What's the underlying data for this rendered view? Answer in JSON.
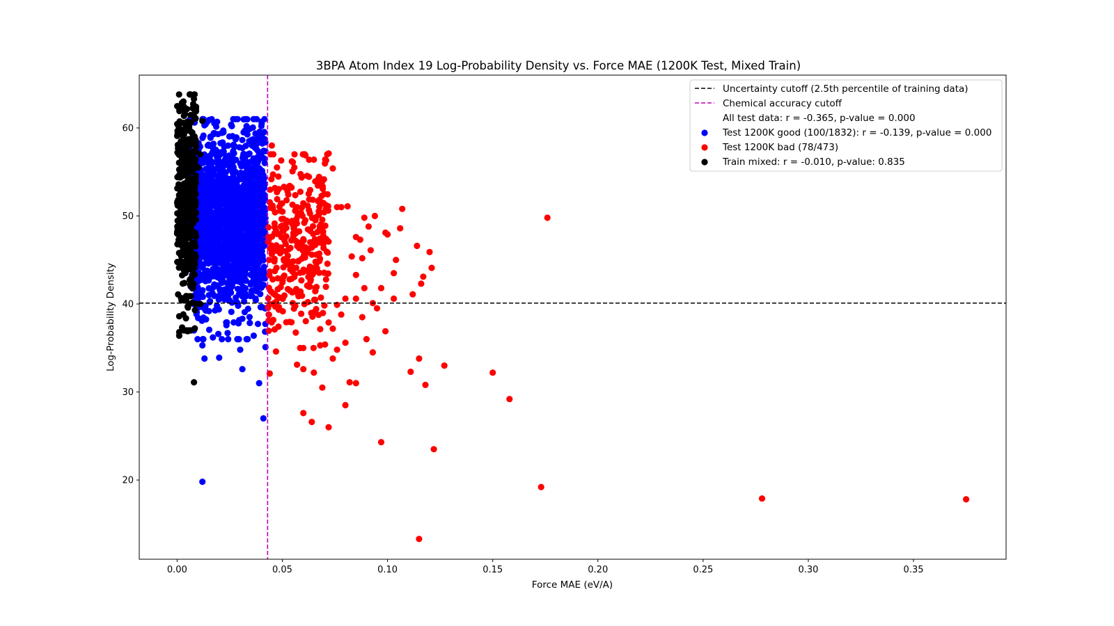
{
  "chart_data": {
    "type": "scatter",
    "title": "3BPA Atom Index 19 Log-Probability Density vs. Force MAE (1200K Test, Mixed Train)",
    "xlabel": "Force MAE (eV/A)",
    "ylabel": "Log-Probability Density",
    "xlim": [
      -0.018,
      0.394
    ],
    "ylim": [
      11.0,
      66.0
    ],
    "xticks": [
      0.0,
      0.05,
      0.1,
      0.15,
      0.2,
      0.25,
      0.3,
      0.35
    ],
    "xtick_labels": [
      "0.00",
      "0.05",
      "0.10",
      "0.15",
      "0.20",
      "0.25",
      "0.30",
      "0.35"
    ],
    "yticks": [
      20,
      30,
      40,
      50,
      60
    ],
    "ytick_labels": [
      "20",
      "30",
      "40",
      "50",
      "60"
    ],
    "grid": false,
    "legend_position": "top-right",
    "reference_lines": [
      {
        "orientation": "horizontal",
        "value": 40.1,
        "color": "#000000",
        "style": "dashed",
        "label": "Uncertainty cutoff (2.5th percentile of training data)"
      },
      {
        "orientation": "vertical",
        "value": 0.043,
        "color": "#bf00bf",
        "style": "dashed",
        "label": "Chemical accuracy cutoff"
      }
    ],
    "legend_note": "All test data: r = -0.365, p-value = 0.000",
    "series": [
      {
        "name": "Test 1200K good (100/1832): r = -0.139, p-value = 0.000",
        "color": "#0000ff",
        "cluster": {
          "count": 1700,
          "x_range": [
            0.006,
            0.042
          ],
          "y_mean": 49.5,
          "y_sd": 5.0,
          "y_range": [
            36,
            61
          ],
          "seed": 11
        },
        "points": [
          [
            0.012,
            19.8
          ],
          [
            0.041,
            27.0
          ],
          [
            0.039,
            31.0
          ],
          [
            0.031,
            32.6
          ],
          [
            0.013,
            33.8
          ],
          [
            0.02,
            33.9
          ],
          [
            0.03,
            34.8
          ],
          [
            0.012,
            35.3
          ],
          [
            0.042,
            35.1
          ],
          [
            0.019,
            60.7
          ],
          [
            0.026,
            60.2
          ],
          [
            0.033,
            60.2
          ],
          [
            0.013,
            60.3
          ],
          [
            0.022,
            59.5
          ],
          [
            0.036,
            58.7
          ],
          [
            0.008,
            37.0
          ],
          [
            0.01,
            38.4
          ],
          [
            0.017,
            36.2
          ],
          [
            0.024,
            36.7
          ]
        ]
      },
      {
        "name": "Test 1200K bad (78/473)",
        "color": "#ff0000",
        "cluster": {
          "count": 330,
          "x_range": [
            0.043,
            0.072
          ],
          "y_mean": 46.0,
          "y_sd": 5.0,
          "y_range": [
            35,
            57
          ],
          "seed": 23
        },
        "points": [
          [
            0.115,
            13.3
          ],
          [
            0.375,
            17.8
          ],
          [
            0.278,
            17.9
          ],
          [
            0.173,
            19.2
          ],
          [
            0.122,
            23.5
          ],
          [
            0.097,
            24.3
          ],
          [
            0.072,
            26.0
          ],
          [
            0.064,
            26.6
          ],
          [
            0.06,
            27.6
          ],
          [
            0.08,
            28.5
          ],
          [
            0.158,
            29.2
          ],
          [
            0.069,
            30.5
          ],
          [
            0.082,
            31.1
          ],
          [
            0.085,
            31.0
          ],
          [
            0.118,
            30.8
          ],
          [
            0.044,
            32.1
          ],
          [
            0.15,
            32.2
          ],
          [
            0.111,
            32.3
          ],
          [
            0.065,
            32.2
          ],
          [
            0.06,
            32.6
          ],
          [
            0.057,
            33.1
          ],
          [
            0.127,
            33.0
          ],
          [
            0.074,
            33.8
          ],
          [
            0.115,
            33.8
          ],
          [
            0.093,
            34.5
          ],
          [
            0.047,
            34.6
          ],
          [
            0.076,
            34.8
          ],
          [
            0.068,
            35.3
          ],
          [
            0.08,
            35.6
          ],
          [
            0.09,
            36.0
          ],
          [
            0.099,
            36.9
          ],
          [
            0.074,
            37.2
          ],
          [
            0.072,
            37.9
          ],
          [
            0.078,
            38.8
          ],
          [
            0.085,
            40.6
          ],
          [
            0.093,
            40.1
          ],
          [
            0.095,
            39.5
          ],
          [
            0.089,
            41.8
          ],
          [
            0.097,
            41.8
          ],
          [
            0.103,
            40.6
          ],
          [
            0.112,
            41.1
          ],
          [
            0.116,
            42.3
          ],
          [
            0.117,
            43.1
          ],
          [
            0.121,
            44.1
          ],
          [
            0.12,
            45.9
          ],
          [
            0.114,
            46.6
          ],
          [
            0.104,
            45.0
          ],
          [
            0.103,
            43.5
          ],
          [
            0.1,
            47.9
          ],
          [
            0.099,
            48.1
          ],
          [
            0.106,
            48.6
          ],
          [
            0.107,
            50.8
          ],
          [
            0.176,
            49.8
          ],
          [
            0.094,
            50.0
          ],
          [
            0.089,
            49.8
          ],
          [
            0.091,
            48.8
          ],
          [
            0.087,
            47.3
          ],
          [
            0.085,
            47.6
          ],
          [
            0.092,
            46.1
          ],
          [
            0.088,
            45.2
          ],
          [
            0.083,
            45.4
          ],
          [
            0.081,
            51.1
          ],
          [
            0.076,
            51.0
          ],
          [
            0.078,
            51.0
          ],
          [
            0.07,
            52.5
          ],
          [
            0.074,
            55.4
          ],
          [
            0.065,
            56.4
          ],
          [
            0.072,
            57.1
          ],
          [
            0.061,
            56.9
          ],
          [
            0.055,
            56.1
          ],
          [
            0.045,
            58.0
          ],
          [
            0.08,
            40.6
          ],
          [
            0.085,
            43.3
          ],
          [
            0.076,
            39.9
          ],
          [
            0.088,
            38.5
          ]
        ]
      },
      {
        "name": "Train mixed: r = -0.010, p-value: 0.835",
        "color": "#000000",
        "cluster": {
          "count": 420,
          "x_range": [
            0.0,
            0.009
          ],
          "y_mean": 52.0,
          "y_sd": 6.0,
          "y_range": [
            37,
            63.8
          ],
          "seed": 37
        },
        "points": [
          [
            0.008,
            31.1
          ],
          [
            0.001,
            36.8
          ],
          [
            0.001,
            36.4
          ],
          [
            0.005,
            36.9
          ],
          [
            0.001,
            38.6
          ],
          [
            0.005,
            39.7
          ],
          [
            0.006,
            40.0
          ],
          [
            0.009,
            40.0
          ],
          [
            0.011,
            40.0
          ],
          [
            0.006,
            63.8
          ],
          [
            0.008,
            63.3
          ],
          [
            0.003,
            63.0
          ],
          [
            0.009,
            62.4
          ],
          [
            0.009,
            61.9
          ],
          [
            0.012,
            60.8
          ],
          [
            0.01,
            55.5
          ],
          [
            0.0,
            48.0
          ],
          [
            0.009,
            57.3
          ],
          [
            0.011,
            57.0
          ]
        ]
      }
    ]
  }
}
